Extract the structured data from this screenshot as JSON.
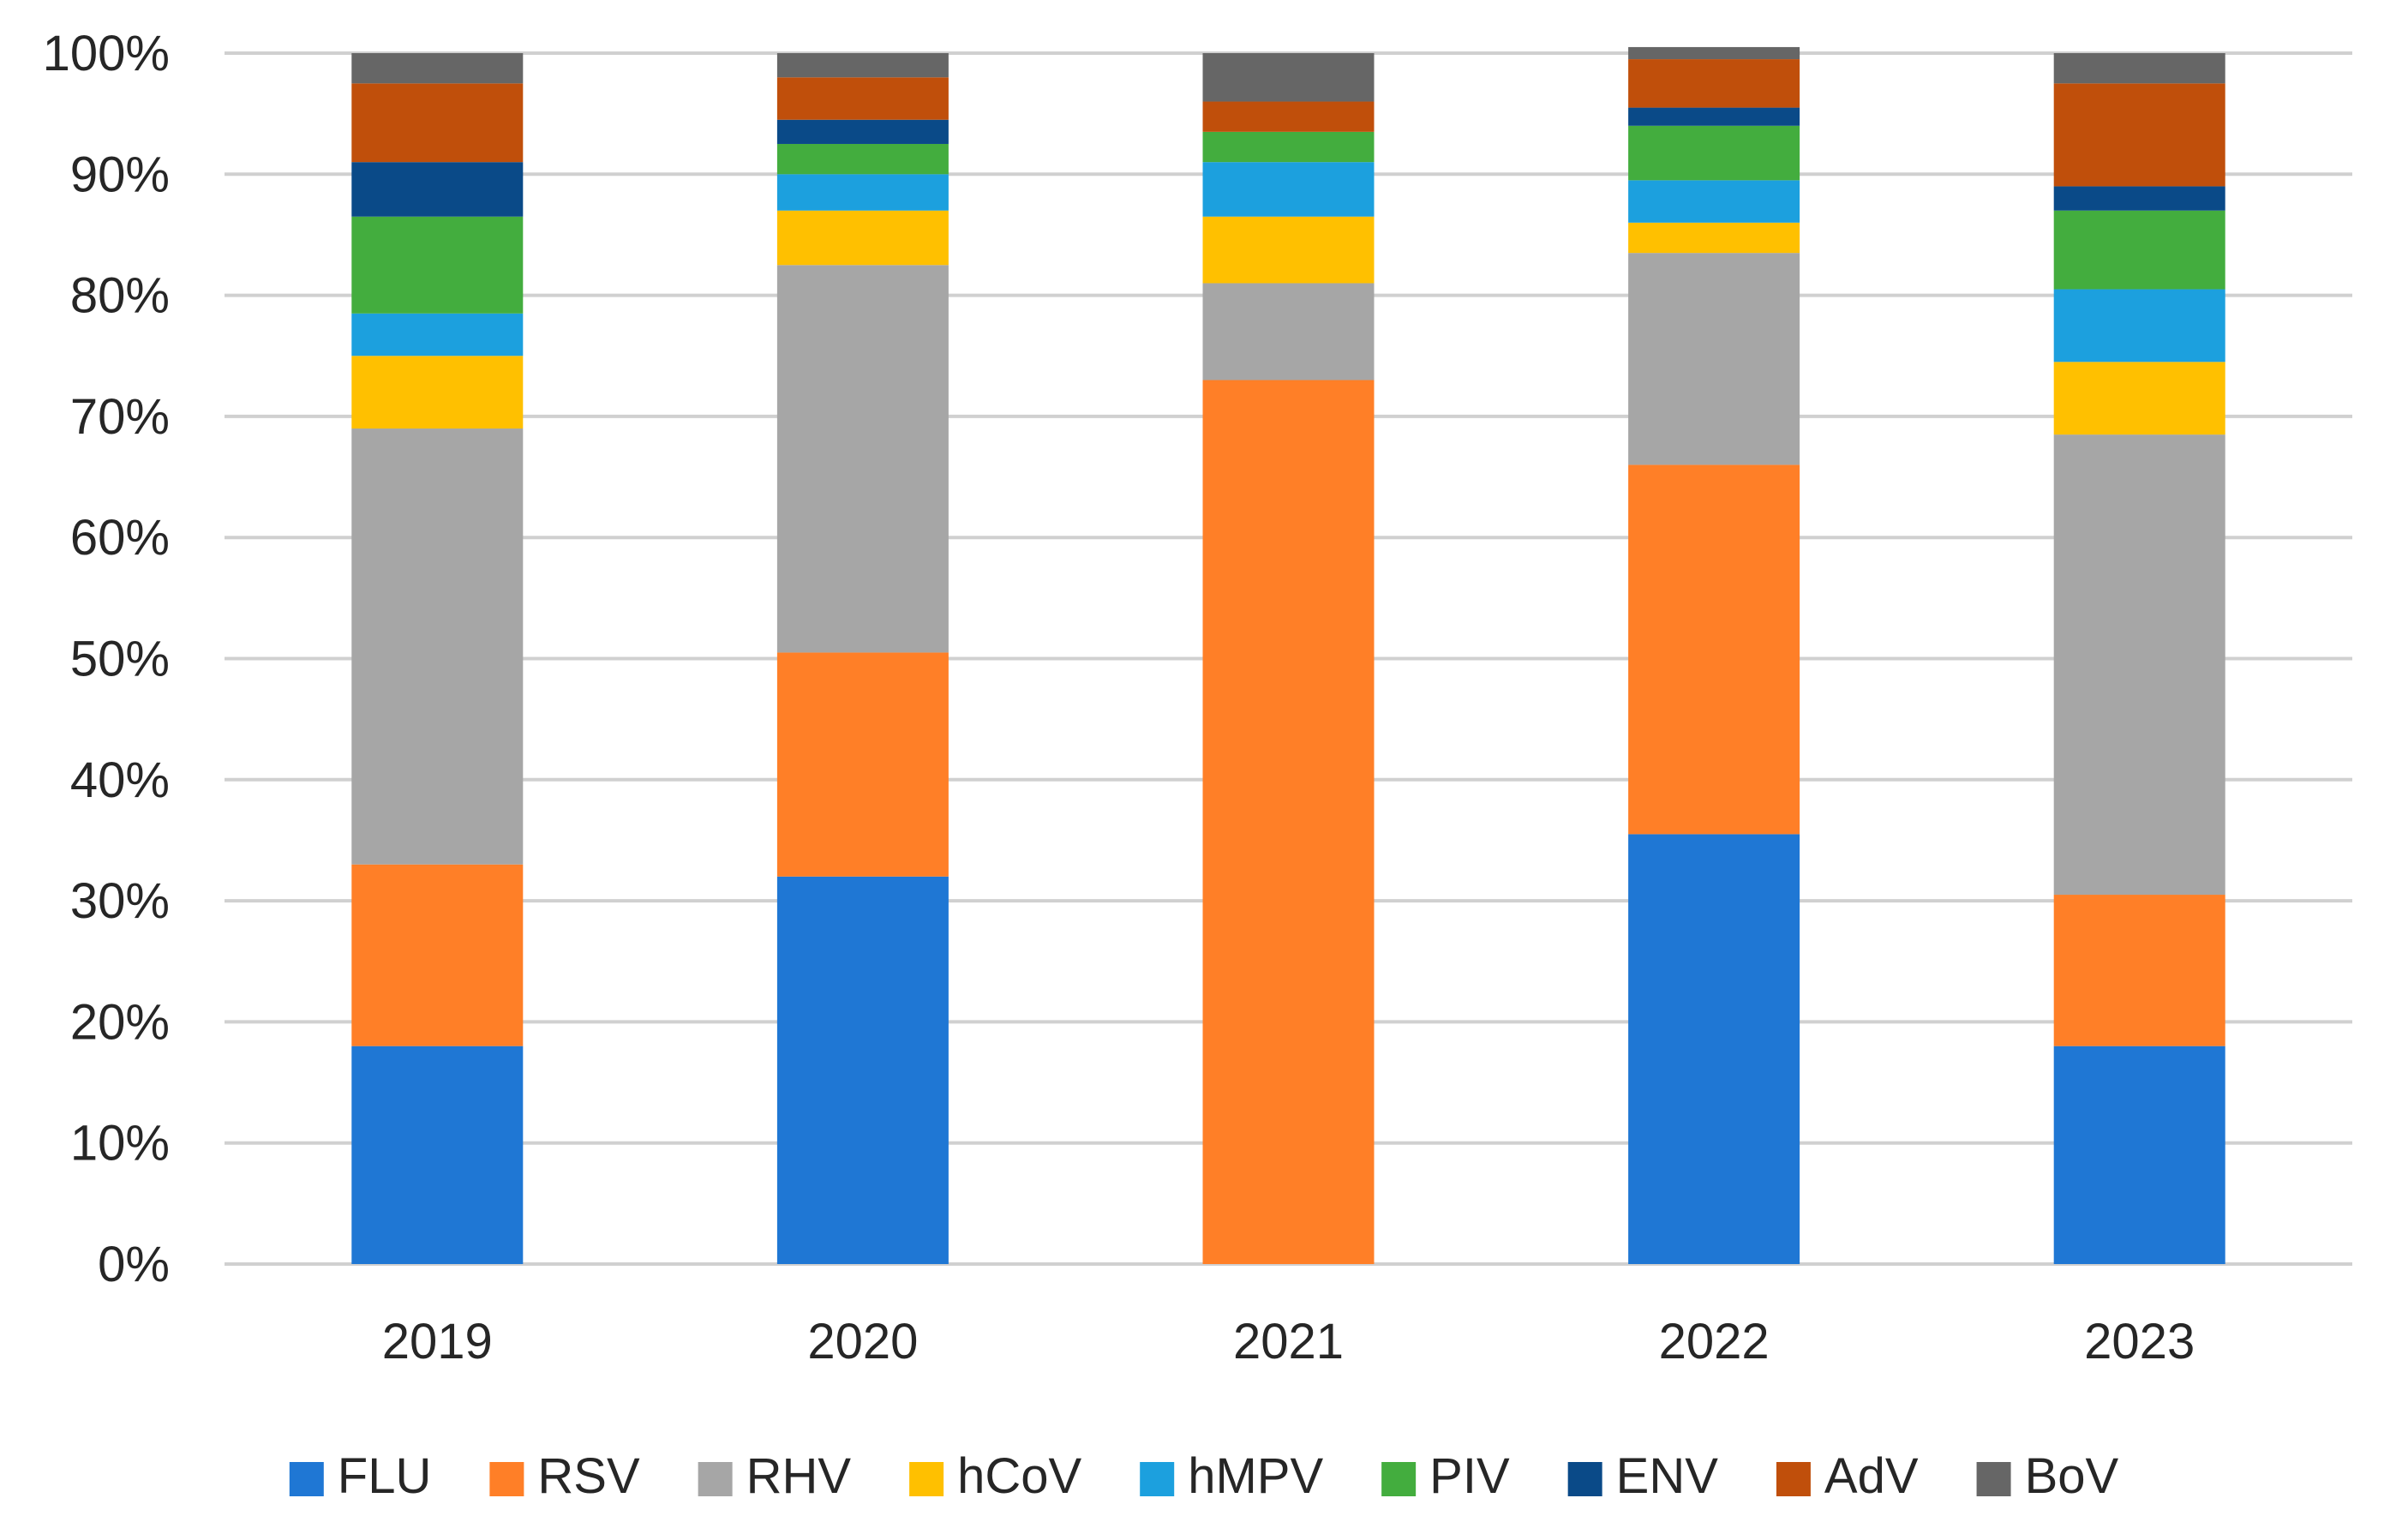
{
  "chart_data": {
    "type": "bar",
    "stacked": true,
    "percent": true,
    "title": "",
    "xlabel": "",
    "ylabel": "",
    "ylim": [
      0,
      100
    ],
    "y_ticks": [
      "0%",
      "10%",
      "20%",
      "30%",
      "40%",
      "50%",
      "60%",
      "70%",
      "80%",
      "90%",
      "100%"
    ],
    "y_tick_values": [
      0,
      10,
      20,
      30,
      40,
      50,
      60,
      70,
      80,
      90,
      100
    ],
    "grid": true,
    "legend_position": "bottom",
    "categories": [
      "2019",
      "2020",
      "2021",
      "2022",
      "2023"
    ],
    "series": [
      {
        "name": "FLU",
        "color": "#1f77d4",
        "values": [
          18,
          32,
          0,
          35.5,
          18
        ]
      },
      {
        "name": "RSV",
        "color": "#ff7f27",
        "values": [
          15,
          18.5,
          73,
          30.5,
          12.5
        ]
      },
      {
        "name": "RHV",
        "color": "#a6a6a6",
        "values": [
          36,
          32,
          8,
          17.5,
          38
        ]
      },
      {
        "name": "hCoV",
        "color": "#ffc000",
        "values": [
          6,
          4.5,
          5.5,
          2.5,
          6
        ]
      },
      {
        "name": "hMPV",
        "color": "#1ca0de",
        "values": [
          3.5,
          3,
          4.5,
          3.5,
          6
        ]
      },
      {
        "name": "PIV",
        "color": "#43ad3e",
        "values": [
          8,
          2.5,
          2.5,
          4.5,
          6.5
        ]
      },
      {
        "name": "ENV",
        "color": "#0a4a88",
        "values": [
          4.5,
          2,
          0,
          1.5,
          2
        ]
      },
      {
        "name": "AdV",
        "color": "#c04f0b",
        "values": [
          6.5,
          3.5,
          2.5,
          4,
          8.5
        ]
      },
      {
        "name": "BoV",
        "color": "#666666",
        "values": [
          2.5,
          2,
          4,
          1,
          2.5
        ]
      }
    ]
  }
}
